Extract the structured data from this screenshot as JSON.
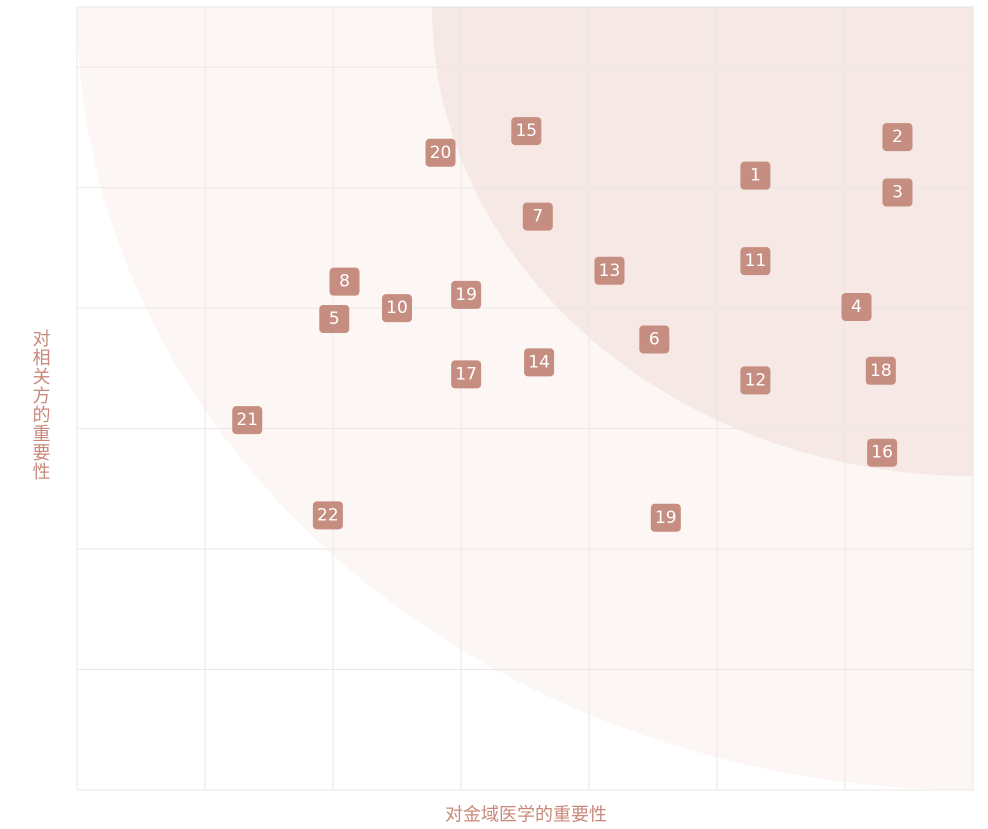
{
  "chart_data": {
    "type": "scatter",
    "xlabel": "对金域医学的重要性",
    "ylabel": "对相关方的重要性",
    "xlim": [
      0,
      7
    ],
    "ylim": [
      0,
      6.5
    ],
    "xticks": [
      0,
      1,
      2,
      3,
      4,
      5,
      6,
      7
    ],
    "yticks": [
      0,
      1,
      2,
      3,
      4,
      5,
      6
    ],
    "tick_labels": false,
    "grid": true,
    "color": "#c68d81",
    "labels": [
      "2",
      "3",
      "1",
      "15",
      "20",
      "7",
      "13",
      "11",
      "8",
      "19",
      "10",
      "5",
      "4",
      "6",
      "14",
      "17",
      "12",
      "18",
      "21",
      "16",
      "22",
      "19"
    ],
    "x": [
      6.41,
      6.41,
      5.3,
      3.51,
      2.84,
      3.6,
      4.16,
      5.3,
      2.09,
      3.04,
      2.5,
      2.01,
      6.09,
      4.51,
      3.61,
      3.04,
      5.3,
      6.28,
      1.33,
      6.29,
      1.96,
      4.6
    ],
    "y": [
      5.42,
      4.96,
      5.1,
      5.47,
      5.29,
      4.76,
      4.31,
      4.39,
      4.22,
      4.11,
      4.0,
      3.91,
      4.01,
      3.74,
      3.55,
      3.45,
      3.4,
      3.48,
      3.07,
      2.8,
      2.28,
      2.26
    ]
  }
}
